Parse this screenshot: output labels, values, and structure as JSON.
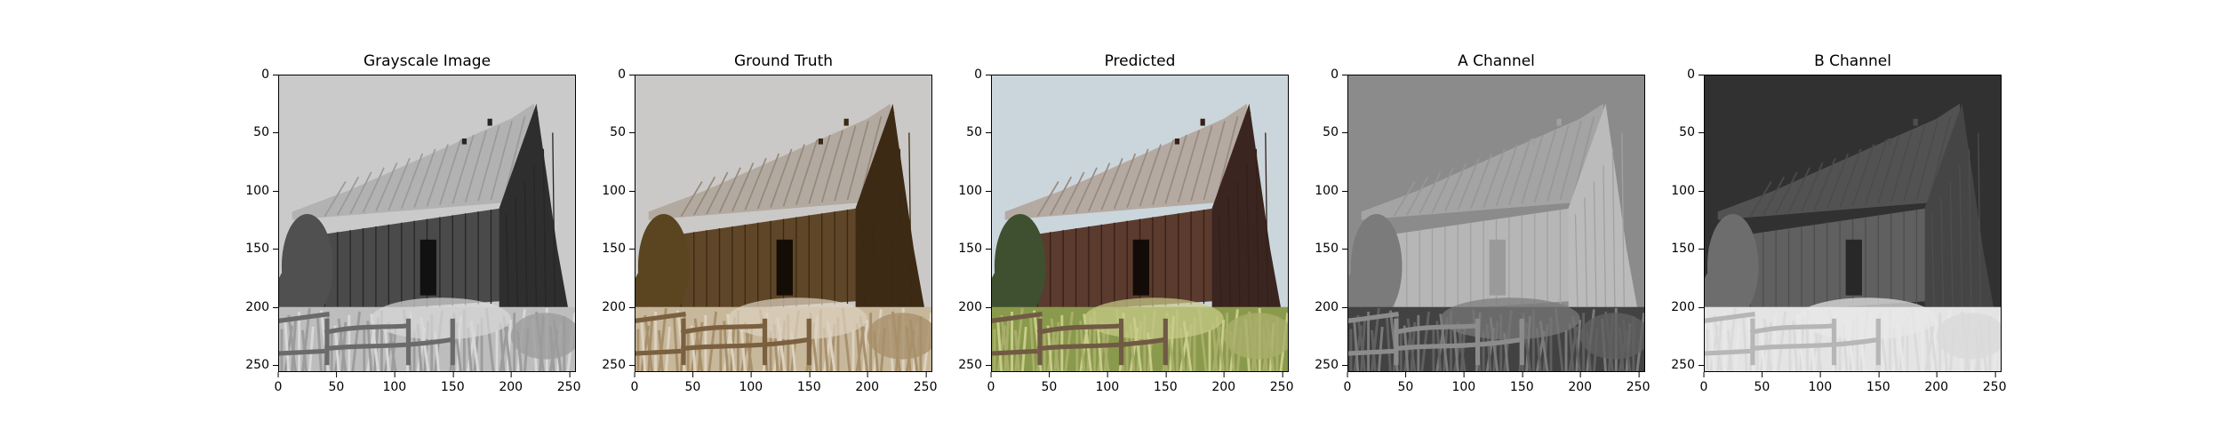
{
  "figure": {
    "panels": [
      {
        "title": "Grayscale Image",
        "mode": "gray"
      },
      {
        "title": "Ground Truth",
        "mode": "truth"
      },
      {
        "title": "Predicted",
        "mode": "pred"
      },
      {
        "title": "A Channel",
        "mode": "achan"
      },
      {
        "title": "B Channel",
        "mode": "bchan"
      }
    ],
    "axis_range": [
      0,
      256
    ],
    "yticks": [
      "0",
      "50",
      "100",
      "150",
      "200",
      "250"
    ],
    "xticks": [
      "0",
      "50",
      "100",
      "150",
      "200",
      "250"
    ]
  }
}
